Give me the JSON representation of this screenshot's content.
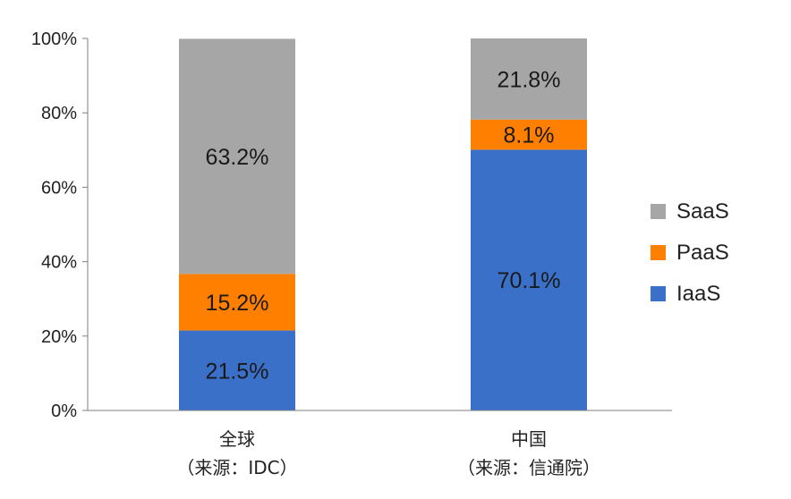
{
  "chart_data": {
    "type": "bar",
    "stacked": true,
    "categories": [
      "全球\n（来源：IDC）",
      "中国\n（来源：信通院）"
    ],
    "series": [
      {
        "name": "IaaS",
        "values": [
          21.5,
          70.1
        ],
        "color": "#3b70c9"
      },
      {
        "name": "PaaS",
        "values": [
          15.2,
          8.1
        ],
        "color": "#ff7f00"
      },
      {
        "name": "SaaS",
        "values": [
          63.2,
          21.8
        ],
        "color": "#a6a6a6"
      }
    ],
    "value_suffix": "%",
    "y_ticks": [
      "0%",
      "20%",
      "40%",
      "60%",
      "80%",
      "100%"
    ],
    "ylim": [
      0,
      100
    ],
    "grid": false,
    "legend_position": "right"
  }
}
